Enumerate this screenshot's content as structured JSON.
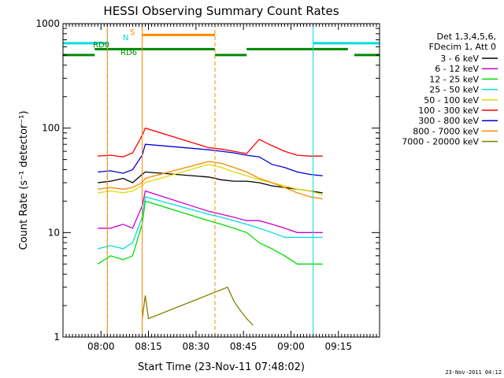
{
  "chart_data": {
    "type": "line",
    "title": "HESSI Observing Summary Count Rates",
    "xlabel": "Start Time (23-Nov-11 07:48:02)",
    "ylabel": "Count Rate (s⁻¹ detector⁻¹)",
    "y_scale": "log",
    "ylim": [
      1,
      1000
    ],
    "xlim": [
      "07:48",
      "09:28"
    ],
    "x_ticks": [
      "08:00",
      "08:15",
      "08:30",
      "08:45",
      "09:00",
      "09:15"
    ],
    "y_ticks": [
      "1",
      "10",
      "100",
      "1000"
    ],
    "grid": false,
    "legend_position": "right",
    "legend_header": [
      "Det 1,3,4,5,6,",
      "FDecim 1, Att 0"
    ],
    "timestamp": "23-Nov-2011 04:12",
    "series": [
      {
        "name": "3 - 6 keV",
        "color": "#000000",
        "x": [
          "07:59",
          "08:03",
          "08:07",
          "08:10",
          "08:13",
          "08:14",
          "08:34",
          "08:38",
          "08:42",
          "08:46",
          "08:50",
          "08:54",
          "08:58",
          "09:02",
          "09:06",
          "09:10"
        ],
        "y": [
          30,
          31,
          33,
          30,
          36,
          38,
          34,
          32,
          31,
          31,
          30,
          28,
          27,
          26,
          25,
          24
        ]
      },
      {
        "name": "6 - 12 keV",
        "color": "#cc00cc",
        "x": [
          "07:59",
          "08:03",
          "08:07",
          "08:10",
          "08:13",
          "08:14",
          "08:34",
          "08:38",
          "08:42",
          "08:46",
          "08:50",
          "08:54",
          "08:58",
          "09:02",
          "09:06",
          "09:10"
        ],
        "y": [
          11,
          11,
          12,
          11,
          18,
          25,
          16,
          15,
          14,
          13,
          13,
          12,
          11,
          10,
          10,
          10
        ]
      },
      {
        "name": "12 - 25 keV",
        "color": "#00dd00",
        "x": [
          "07:59",
          "08:03",
          "08:07",
          "08:10",
          "08:13",
          "08:14",
          "08:34",
          "08:38",
          "08:42",
          "08:46",
          "08:50",
          "08:54",
          "08:58",
          "09:02",
          "09:06",
          "09:10"
        ],
        "y": [
          5,
          6,
          5.5,
          6,
          12,
          20,
          13,
          12,
          11,
          10,
          8,
          7,
          6,
          5,
          5,
          5
        ]
      },
      {
        "name": "25 - 50 keV",
        "color": "#00dddd",
        "x": [
          "07:59",
          "08:03",
          "08:07",
          "08:10",
          "08:13",
          "08:14",
          "08:34",
          "08:38",
          "08:42",
          "08:46",
          "08:50",
          "08:54",
          "08:58",
          "09:02",
          "09:06",
          "09:10"
        ],
        "y": [
          7,
          7.5,
          7,
          8,
          14,
          22,
          15,
          14,
          13,
          12,
          11,
          10,
          9,
          9,
          9,
          9
        ]
      },
      {
        "name": "50 - 100 keV",
        "color": "#dddd00",
        "x": [
          "07:59",
          "08:03",
          "08:07",
          "08:10",
          "08:13",
          "08:14",
          "08:34",
          "08:38",
          "08:42",
          "08:46",
          "08:50",
          "08:54",
          "08:58",
          "09:02",
          "09:06",
          "09:10"
        ],
        "y": [
          24,
          25,
          24,
          25,
          28,
          30,
          45,
          42,
          38,
          35,
          32,
          30,
          28,
          26,
          25,
          23
        ]
      },
      {
        "name": "100 - 300 keV",
        "color": "#ff0000",
        "x": [
          "07:59",
          "08:03",
          "08:07",
          "08:10",
          "08:13",
          "08:14",
          "08:34",
          "08:38",
          "08:42",
          "08:46",
          "08:50",
          "08:54",
          "08:58",
          "09:02",
          "09:06",
          "09:10"
        ],
        "y": [
          54,
          55,
          53,
          58,
          85,
          100,
          65,
          63,
          60,
          57,
          78,
          68,
          60,
          55,
          54,
          54
        ]
      },
      {
        "name": "300 - 800 keV",
        "color": "#0000dd",
        "x": [
          "07:59",
          "08:03",
          "08:07",
          "08:10",
          "08:13",
          "08:14",
          "08:34",
          "08:38",
          "08:42",
          "08:46",
          "08:50",
          "08:54",
          "08:58",
          "09:02",
          "09:06",
          "09:10"
        ],
        "y": [
          38,
          39,
          37,
          40,
          55,
          70,
          62,
          60,
          58,
          55,
          53,
          45,
          42,
          38,
          36,
          35
        ]
      },
      {
        "name": "800 - 7000 keV",
        "color": "#ff8800",
        "x": [
          "07:59",
          "08:03",
          "08:07",
          "08:10",
          "08:13",
          "08:14",
          "08:34",
          "08:38",
          "08:42",
          "08:46",
          "08:50",
          "08:54",
          "08:58",
          "09:02",
          "09:06",
          "09:10"
        ],
        "y": [
          26,
          27,
          26,
          27,
          30,
          33,
          48,
          46,
          42,
          38,
          33,
          30,
          27,
          24,
          22,
          21
        ]
      },
      {
        "name": "7000 - 20000 keV",
        "color": "#808000",
        "x": [
          "08:13",
          "08:14",
          "08:15",
          "08:40",
          "08:42",
          "08:44",
          "08:46",
          "08:48"
        ],
        "y": [
          1.5,
          2.5,
          1.5,
          3,
          2.2,
          1.8,
          1.5,
          1.3
        ]
      }
    ],
    "annotations": [
      {
        "text": "RD0",
        "color": "#008800"
      },
      {
        "text": "RD6",
        "color": "#008800"
      },
      {
        "text": "N",
        "color": "#00dddd"
      },
      {
        "text": "S",
        "color": "#ff8800"
      }
    ],
    "flag_bars": {
      "night": {
        "color": "#00dddd",
        "y": 650,
        "segments": [
          [
            "07:48",
            "08:02"
          ],
          [
            "09:07",
            "09:28"
          ]
        ]
      },
      "saa": {
        "color": "#ff8800",
        "y": 780,
        "segments": [
          [
            "08:13",
            "08:36"
          ]
        ]
      },
      "rd0": {
        "color": "#008800",
        "y": 500,
        "segments": [
          [
            "07:48",
            "07:58"
          ],
          [
            "08:36",
            "08:46"
          ],
          [
            "09:20",
            "09:28"
          ]
        ]
      },
      "rd6": {
        "color": "#008800",
        "y": 570,
        "segments": [
          [
            "07:58",
            "08:36"
          ],
          [
            "08:46",
            "09:18"
          ]
        ]
      }
    },
    "vertical_markers": [
      {
        "x": "07:48",
        "color": "#00dddd",
        "style": "solid"
      },
      {
        "x": "08:02",
        "color": "#00dddd",
        "style": "dashed"
      },
      {
        "x": "08:02",
        "color": "#ff8800",
        "style": "solid"
      },
      {
        "x": "08:13",
        "color": "#ff8800",
        "style": "solid"
      },
      {
        "x": "08:36",
        "color": "#ff8800",
        "style": "dashed"
      },
      {
        "x": "09:07",
        "color": "#00dddd",
        "style": "solid"
      },
      {
        "x": "09:28",
        "color": "#00dddd",
        "style": "dashed"
      }
    ]
  }
}
